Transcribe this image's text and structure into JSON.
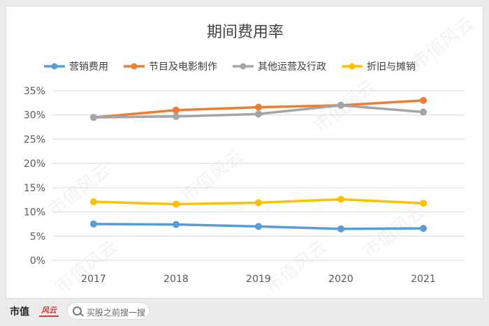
{
  "chart_data": {
    "type": "line",
    "title": "期间费用率",
    "categories": [
      "2017",
      "2018",
      "2019",
      "2020",
      "2021"
    ],
    "y_tick_labels": [
      "0%",
      "5%",
      "10%",
      "15%",
      "20%",
      "25%",
      "30%",
      "35%"
    ],
    "ylim": [
      0,
      35
    ],
    "grid": true,
    "legend_position": "top",
    "series": [
      {
        "name": "营销费用",
        "color": "#5b9bd5",
        "values": [
          7.5,
          7.4,
          7.0,
          6.5,
          6.6
        ]
      },
      {
        "name": "节目及电影制作",
        "color": "#ed7d31",
        "values": [
          29.5,
          31.0,
          31.6,
          32.0,
          33.0
        ]
      },
      {
        "name": "其他运营及行政",
        "color": "#a5a5a5",
        "values": [
          29.5,
          29.7,
          30.2,
          32.0,
          30.6
        ]
      },
      {
        "name": "折旧与摊销",
        "color": "#ffc000",
        "values": [
          12.1,
          11.6,
          11.9,
          12.6,
          11.8
        ]
      }
    ]
  },
  "watermark": "市值风云",
  "footer": {
    "brand": "市值",
    "brand_tag": "风云",
    "search_icon": "search-icon",
    "search_text": "买股之前搜一搜"
  }
}
